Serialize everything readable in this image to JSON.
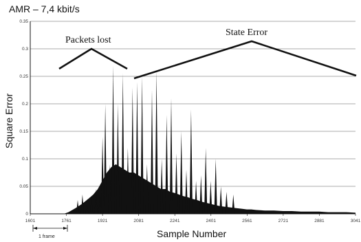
{
  "chart_data": {
    "type": "area",
    "title": "AMR – 7,4 kbit/s",
    "xlabel": "Sample Number",
    "ylabel": "Square Error",
    "xlim": [
      1601,
      3041
    ],
    "ylim": [
      0,
      0.35
    ],
    "x_ticks": [
      "1601",
      "1761",
      "1921",
      "2081",
      "2241",
      "2401",
      "2561",
      "2721",
      "2881",
      "3041"
    ],
    "y_ticks": [
      "0",
      "0.05",
      "0.1",
      "0.15",
      "0.2",
      "0.25",
      "0.3",
      "0.35"
    ],
    "grid": true,
    "annotations": {
      "packets_lost": "Packets lost",
      "state_error": "State Error",
      "frame_bracket": "1 frame"
    },
    "envelope_x": [
      1601,
      1750,
      1770,
      1800,
      1830,
      1860,
      1880,
      1900,
      1920,
      1940,
      1960,
      1980,
      2000,
      2020,
      2040,
      2060,
      2080,
      2100,
      2120,
      2140,
      2160,
      2180,
      2200,
      2220,
      2240,
      2260,
      2280,
      2300,
      2320,
      2340,
      2360,
      2380,
      2400,
      2420,
      2440,
      2460,
      2480,
      2500,
      2520,
      2540,
      2560,
      2580,
      2600,
      2640,
      2680,
      2720,
      2760,
      2800,
      2840,
      2880,
      2920,
      2960,
      3000,
      3041
    ],
    "envelope_y": [
      0,
      0,
      0.003,
      0.01,
      0.018,
      0.028,
      0.035,
      0.045,
      0.06,
      0.075,
      0.085,
      0.09,
      0.085,
      0.08,
      0.075,
      0.075,
      0.07,
      0.065,
      0.06,
      0.055,
      0.05,
      0.045,
      0.045,
      0.04,
      0.038,
      0.035,
      0.032,
      0.03,
      0.027,
      0.025,
      0.022,
      0.02,
      0.018,
      0.016,
      0.014,
      0.013,
      0.012,
      0.011,
      0.01,
      0.009,
      0.008,
      0.008,
      0.007,
      0.006,
      0.006,
      0.005,
      0.005,
      0.004,
      0.004,
      0.004,
      0.003,
      0.003,
      0.003,
      0.002
    ],
    "peak_x": [
      1811,
      1832,
      1852,
      1872,
      1892,
      1910,
      1921,
      1933,
      1952,
      1968,
      1989,
      2011,
      2033,
      2054,
      2074,
      2096,
      2118,
      2140,
      2160,
      2183,
      2205,
      2225,
      2248,
      2270,
      2292,
      2313,
      2335,
      2357,
      2378,
      2400,
      2422,
      2445,
      2470,
      2500
    ],
    "peak_y": [
      0.025,
      0.035,
      0.02,
      0.03,
      0.045,
      0.04,
      0.14,
      0.2,
      0.09,
      0.27,
      0.2,
      0.255,
      0.12,
      0.23,
      0.24,
      0.25,
      0.09,
      0.225,
      0.26,
      0.1,
      0.18,
      0.21,
      0.11,
      0.15,
      0.08,
      0.19,
      0.06,
      0.07,
      0.12,
      0.06,
      0.1,
      0.05,
      0.04,
      0.035
    ]
  }
}
